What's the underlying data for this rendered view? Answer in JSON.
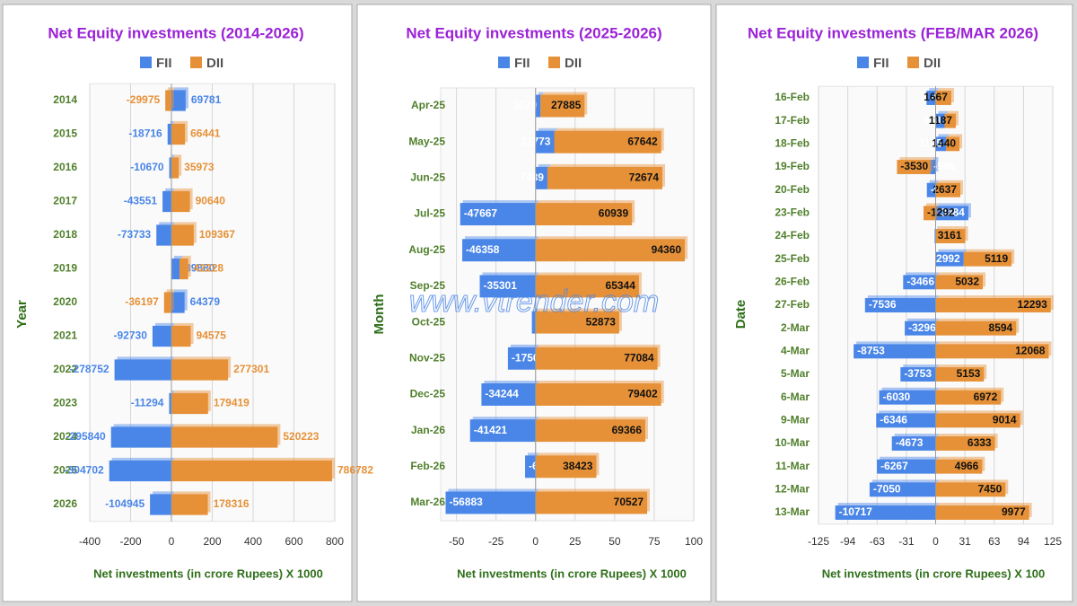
{
  "watermark": "www.vtrender.com",
  "chart_data": [
    {
      "type": "bar",
      "title": "Net Equity investments (2014-2026)",
      "categories": [
        "2014",
        "2015",
        "2016",
        "2017",
        "2018",
        "2019",
        "2020",
        "2021",
        "2022",
        "2023",
        "2024",
        "2025",
        "2026"
      ],
      "series": [
        {
          "name": "FII",
          "color": "#4a86e8",
          "values": [
            69.781,
            -18.716,
            -10.67,
            -43.551,
            -73.733,
            39.88,
            64.379,
            -92.73,
            -278.752,
            -11.294,
            -295.84,
            -304.702,
            -104.945
          ],
          "value_labels": [
            "69781",
            "-18716",
            "-10670",
            "-43551",
            "-73733",
            "39880",
            "64379",
            "-92730",
            "-278752",
            "-11294",
            "-295840",
            "-304702",
            "-104945"
          ]
        },
        {
          "name": "DII",
          "color": "#e69138",
          "values": [
            -29.975,
            66.441,
            35.973,
            90.64,
            109.367,
            42.228,
            -36.197,
            94.575,
            277.301,
            179.419,
            520.223,
            786.782,
            178.316
          ],
          "value_labels": [
            "-29975",
            "66441",
            "35973",
            "90640",
            "109367",
            "42228",
            "-36197",
            "94575",
            "277301",
            "179419",
            "520223",
            "786782",
            "178316"
          ]
        }
      ],
      "xlim": [
        -400,
        800
      ],
      "xticks": [
        -400,
        -200,
        0,
        200,
        400,
        600,
        800
      ],
      "xlabel": "Net investments (in crore Rupees) X 1000",
      "ylabel": "Year",
      "grid": true,
      "stacked": true
    },
    {
      "type": "bar",
      "title": "Net Equity investments (2025-2026)",
      "categories": [
        "Apr-25",
        "May-25",
        "Jun-25",
        "Jul-25",
        "Aug-25",
        "Sep-25",
        "Oct-25",
        "Nov-25",
        "Dec-25",
        "Jan-26",
        "Feb-26",
        "Mar-26"
      ],
      "series": [
        {
          "name": "FII",
          "color": "#4a86e8",
          "values": [
            3.079,
            11.773,
            7.489,
            -47.667,
            -46.358,
            -35.301,
            -2.346,
            -17.5,
            -34.244,
            -41.421,
            -6.641,
            -56.883
          ],
          "value_labels": [
            "3079",
            "11773",
            "7489",
            "-47667",
            "-46358",
            "-35301",
            "-2346",
            "-17500",
            "-34244",
            "-41421",
            "-6641",
            "-56883"
          ]
        },
        {
          "name": "DII",
          "color": "#e69138",
          "values": [
            27.885,
            67.642,
            72.674,
            60.939,
            94.36,
            65.344,
            52.873,
            77.084,
            79.402,
            69.366,
            38.423,
            70.527
          ],
          "value_labels": [
            "27885",
            "67642",
            "72674",
            "60939",
            "94360",
            "65344",
            "52873",
            "77084",
            "79402",
            "69366",
            "38423",
            "70527"
          ]
        }
      ],
      "xlim": [
        -60,
        100
      ],
      "xticks": [
        -50,
        -25,
        0,
        25,
        50,
        75,
        100
      ],
      "xlabel": "Net investments (in crore Rupees) X 1000",
      "ylabel": "Month",
      "grid": true,
      "stacked": true
    },
    {
      "type": "bar",
      "title": "Net Equity investments (FEB/MAR 2026)",
      "categories": [
        "16-Feb",
        "17-Feb",
        "18-Feb",
        "19-Feb",
        "20-Feb",
        "23-Feb",
        "24-Feb",
        "25-Feb",
        "26-Feb",
        "27-Feb",
        "2-Mar",
        "4-Mar",
        "5-Mar",
        "6-Mar",
        "9-Mar",
        "10-Mar",
        "11-Mar",
        "12-Mar",
        "13-Mar"
      ],
      "series": [
        {
          "name": "FII",
          "color": "#4a86e8",
          "values": [
            -9.72,
            9.63,
            11.05,
            -5.96,
            -9.35,
            34.84,
            -1.03,
            29.92,
            -34.66,
            -75.36,
            -32.96,
            -87.53,
            -37.53,
            -60.3,
            -63.46,
            -46.73,
            -62.67,
            -70.5,
            -107.17
          ],
          "value_labels": [
            "-972",
            "963",
            "1105",
            "-596",
            "-935",
            "3484",
            "-103",
            "2992",
            "-3466",
            "-7536",
            "-3296",
            "-8753",
            "-3753",
            "-6030",
            "-6346",
            "-4673",
            "-6267",
            "-7050",
            "-10717"
          ]
        },
        {
          "name": "DII",
          "color": "#e69138",
          "values": [
            16.67,
            11.87,
            14.4,
            -35.3,
            26.37,
            -12.92,
            31.61,
            51.19,
            50.32,
            122.93,
            85.94,
            120.68,
            51.53,
            69.72,
            90.14,
            63.33,
            49.66,
            74.5,
            99.77
          ],
          "value_labels": [
            "1667",
            "1187",
            "1440",
            "-3530",
            "2637",
            "-1292",
            "3161",
            "5119",
            "5032",
            "12293",
            "8594",
            "12068",
            "5153",
            "6972",
            "9014",
            "6333",
            "4966",
            "7450",
            "9977"
          ]
        }
      ],
      "xlim": [
        -125,
        125
      ],
      "xticks": [
        -125,
        {
          "value": -93.75,
          "label": "-94"
        },
        {
          "value": -62.5,
          "label": "-63"
        },
        {
          "value": -31.25,
          "label": "-31"
        },
        0,
        {
          "value": 31.25,
          "label": "31"
        },
        {
          "value": 62.5,
          "label": "63"
        },
        {
          "value": 93.75,
          "label": "94"
        },
        125
      ],
      "xlabel": "Net investments (in crore Rupees) X 100",
      "ylabel": "Date",
      "grid": true,
      "stacked": true
    }
  ]
}
